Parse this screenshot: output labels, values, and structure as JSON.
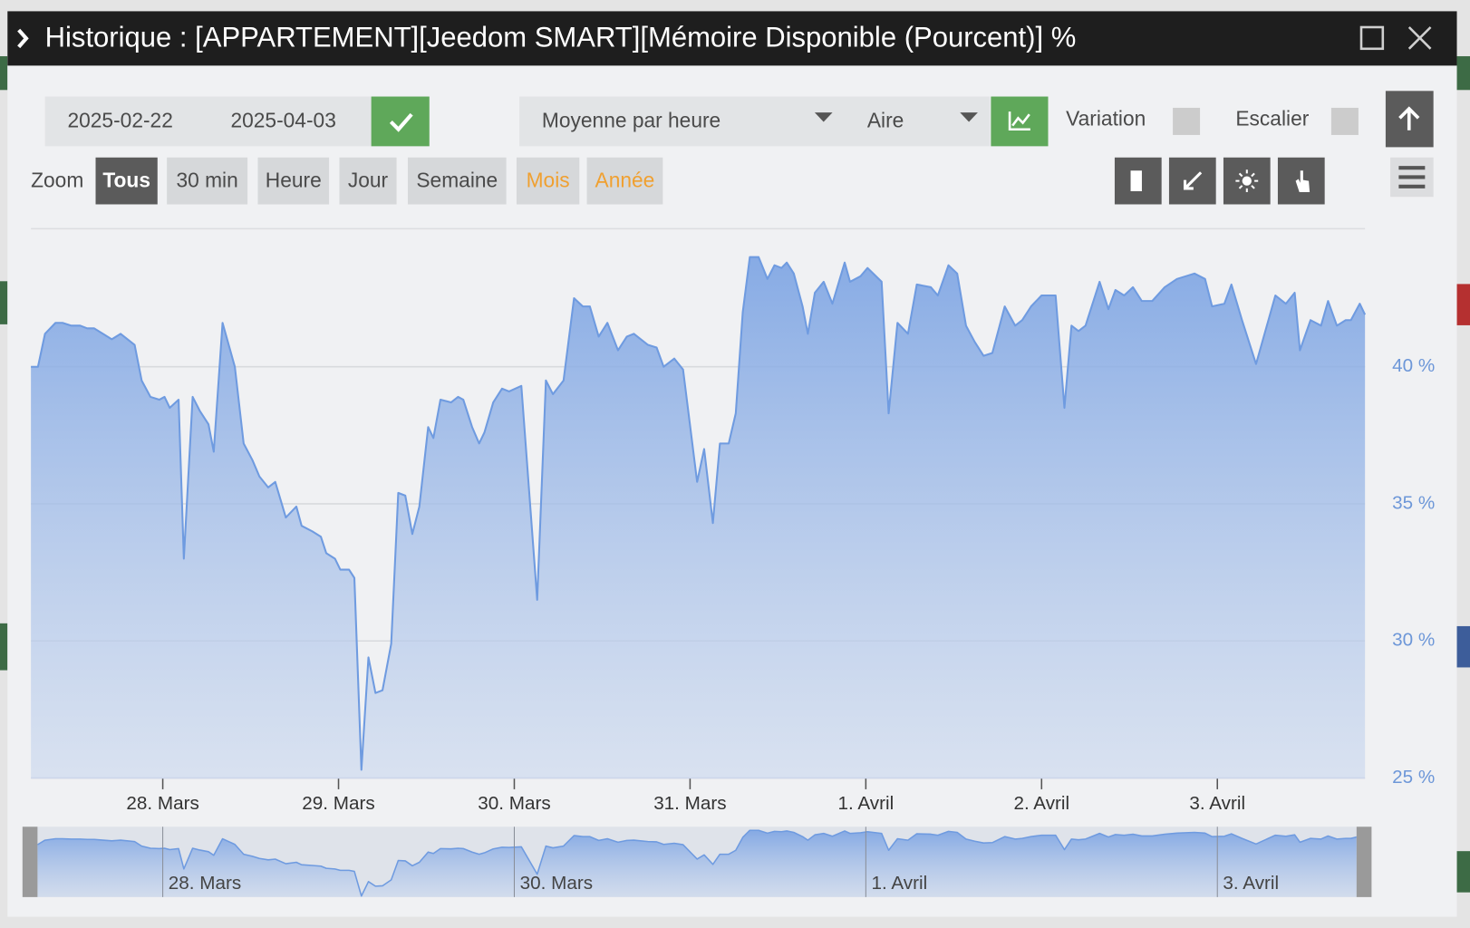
{
  "window": {
    "title": "Historique : [APPARTEMENT][Jeedom SMART][Mémoire Disponible (Pourcent)] %"
  },
  "toolbar": {
    "start_date": "2025-02-22",
    "end_date": "2025-04-03",
    "aggregation": "Moyenne par heure",
    "chart_style": "Aire",
    "variation_label": "Variation",
    "stairs_label": "Escalier"
  },
  "zoom": {
    "label": "Zoom",
    "buttons": [
      "Tous",
      "30 min",
      "Heure",
      "Jour",
      "Semaine",
      "Mois",
      "Année"
    ]
  },
  "chart_data": {
    "type": "area",
    "color": "#6f9be0",
    "grid": true,
    "x": [
      27.25,
      27.29,
      27.33,
      27.39,
      27.43,
      27.48,
      27.53,
      27.57,
      27.61,
      27.66,
      27.71,
      27.76,
      27.84,
      27.88,
      27.93,
      27.98,
      28.01,
      28.04,
      28.09,
      28.12,
      28.17,
      28.21,
      28.26,
      28.29,
      28.34,
      28.41,
      28.46,
      28.51,
      28.55,
      28.6,
      28.64,
      28.7,
      28.76,
      28.79,
      28.85,
      28.9,
      28.93,
      28.98,
      29.01,
      29.06,
      29.09,
      29.13,
      29.17,
      29.21,
      29.25,
      29.3,
      29.34,
      29.38,
      29.42,
      29.46,
      29.51,
      29.54,
      29.58,
      29.64,
      29.68,
      29.71,
      29.76,
      29.8,
      29.83,
      29.88,
      29.93,
      29.97,
      30.04,
      30.13,
      30.18,
      30.22,
      30.28,
      30.34,
      30.39,
      30.43,
      30.48,
      30.53,
      30.59,
      30.64,
      30.68,
      30.76,
      30.81,
      30.85,
      30.91,
      30.96,
      31.04,
      31.08,
      31.13,
      31.17,
      31.22,
      31.26,
      31.3,
      31.34,
      31.39,
      31.44,
      31.48,
      31.52,
      31.55,
      31.59,
      31.64,
      31.67,
      31.71,
      31.76,
      31.81,
      31.88,
      31.91,
      31.97,
      32.01,
      32.09,
      32.13,
      32.18,
      32.24,
      32.29,
      32.37,
      32.41,
      32.47,
      32.52,
      32.57,
      32.62,
      32.67,
      32.72,
      32.79,
      32.85,
      32.89,
      32.94,
      33.0,
      33.08,
      33.13,
      33.17,
      33.21,
      33.25,
      33.33,
      33.38,
      33.42,
      33.47,
      33.52,
      33.57,
      33.63,
      33.7,
      33.77,
      33.82,
      33.87,
      33.93,
      33.97,
      34.04,
      34.08,
      34.14,
      34.22,
      34.33,
      34.39,
      34.44,
      34.47,
      34.53,
      34.59,
      34.63,
      34.68,
      34.73,
      34.76,
      34.81,
      34.84
    ],
    "values": [
      40.0,
      40.0,
      41.2,
      41.6,
      41.6,
      41.5,
      41.5,
      41.4,
      41.4,
      41.2,
      41.0,
      41.2,
      40.8,
      39.5,
      38.9,
      38.8,
      38.9,
      38.5,
      38.8,
      33.0,
      38.9,
      38.4,
      37.9,
      36.9,
      41.6,
      40.0,
      37.2,
      36.6,
      36.0,
      35.6,
      35.8,
      34.5,
      34.9,
      34.2,
      34.0,
      33.8,
      33.2,
      33.0,
      32.6,
      32.6,
      32.3,
      25.3,
      29.4,
      28.1,
      28.2,
      29.9,
      35.4,
      35.3,
      33.9,
      34.9,
      37.8,
      37.4,
      38.8,
      38.7,
      38.9,
      38.8,
      37.8,
      37.2,
      37.6,
      38.7,
      39.2,
      39.1,
      39.3,
      31.5,
      39.5,
      39.0,
      39.5,
      42.5,
      42.2,
      42.2,
      41.1,
      41.6,
      40.6,
      41.1,
      41.2,
      40.8,
      40.7,
      40.0,
      40.3,
      39.9,
      35.8,
      37.0,
      34.3,
      37.2,
      37.2,
      38.3,
      42.0,
      44.0,
      44.0,
      43.2,
      43.7,
      43.6,
      43.8,
      43.4,
      42.2,
      41.2,
      42.7,
      43.1,
      42.3,
      43.8,
      43.1,
      43.3,
      43.6,
      43.1,
      38.3,
      41.6,
      41.2,
      43.0,
      42.9,
      42.6,
      43.7,
      43.4,
      41.5,
      40.9,
      40.4,
      40.5,
      42.2,
      41.5,
      41.7,
      42.2,
      42.6,
      42.6,
      38.5,
      41.5,
      41.3,
      41.5,
      43.1,
      42.1,
      42.8,
      42.6,
      42.9,
      42.4,
      42.4,
      42.9,
      43.2,
      43.3,
      43.4,
      43.2,
      42.2,
      42.3,
      43.0,
      41.7,
      40.1,
      42.6,
      42.3,
      42.7,
      40.6,
      41.7,
      41.5,
      42.4,
      41.5,
      41.7,
      41.7,
      42.3,
      41.9
    ],
    "xlim": [
      27.25,
      34.84
    ],
    "ylim": [
      25,
      45
    ],
    "xticks": [
      {
        "value": 28,
        "label": "28. Mars"
      },
      {
        "value": 29,
        "label": "29. Mars"
      },
      {
        "value": 30,
        "label": "30. Mars"
      },
      {
        "value": 31,
        "label": "31. Mars"
      },
      {
        "value": 32,
        "label": "1. Avril"
      },
      {
        "value": 33,
        "label": "2. Avril"
      },
      {
        "value": 34,
        "label": "3. Avril"
      }
    ],
    "yticks": [
      {
        "value": 25,
        "label": "25 %"
      },
      {
        "value": 30,
        "label": "30 %"
      },
      {
        "value": 35,
        "label": "35 %"
      },
      {
        "value": 40,
        "label": "40 %"
      }
    ],
    "navigator_xticks": [
      {
        "value": 28,
        "label": "28. Mars"
      },
      {
        "value": 30,
        "label": "30. Mars"
      },
      {
        "value": 32,
        "label": "1. Avril"
      },
      {
        "value": 34,
        "label": "3. Avril"
      }
    ]
  }
}
